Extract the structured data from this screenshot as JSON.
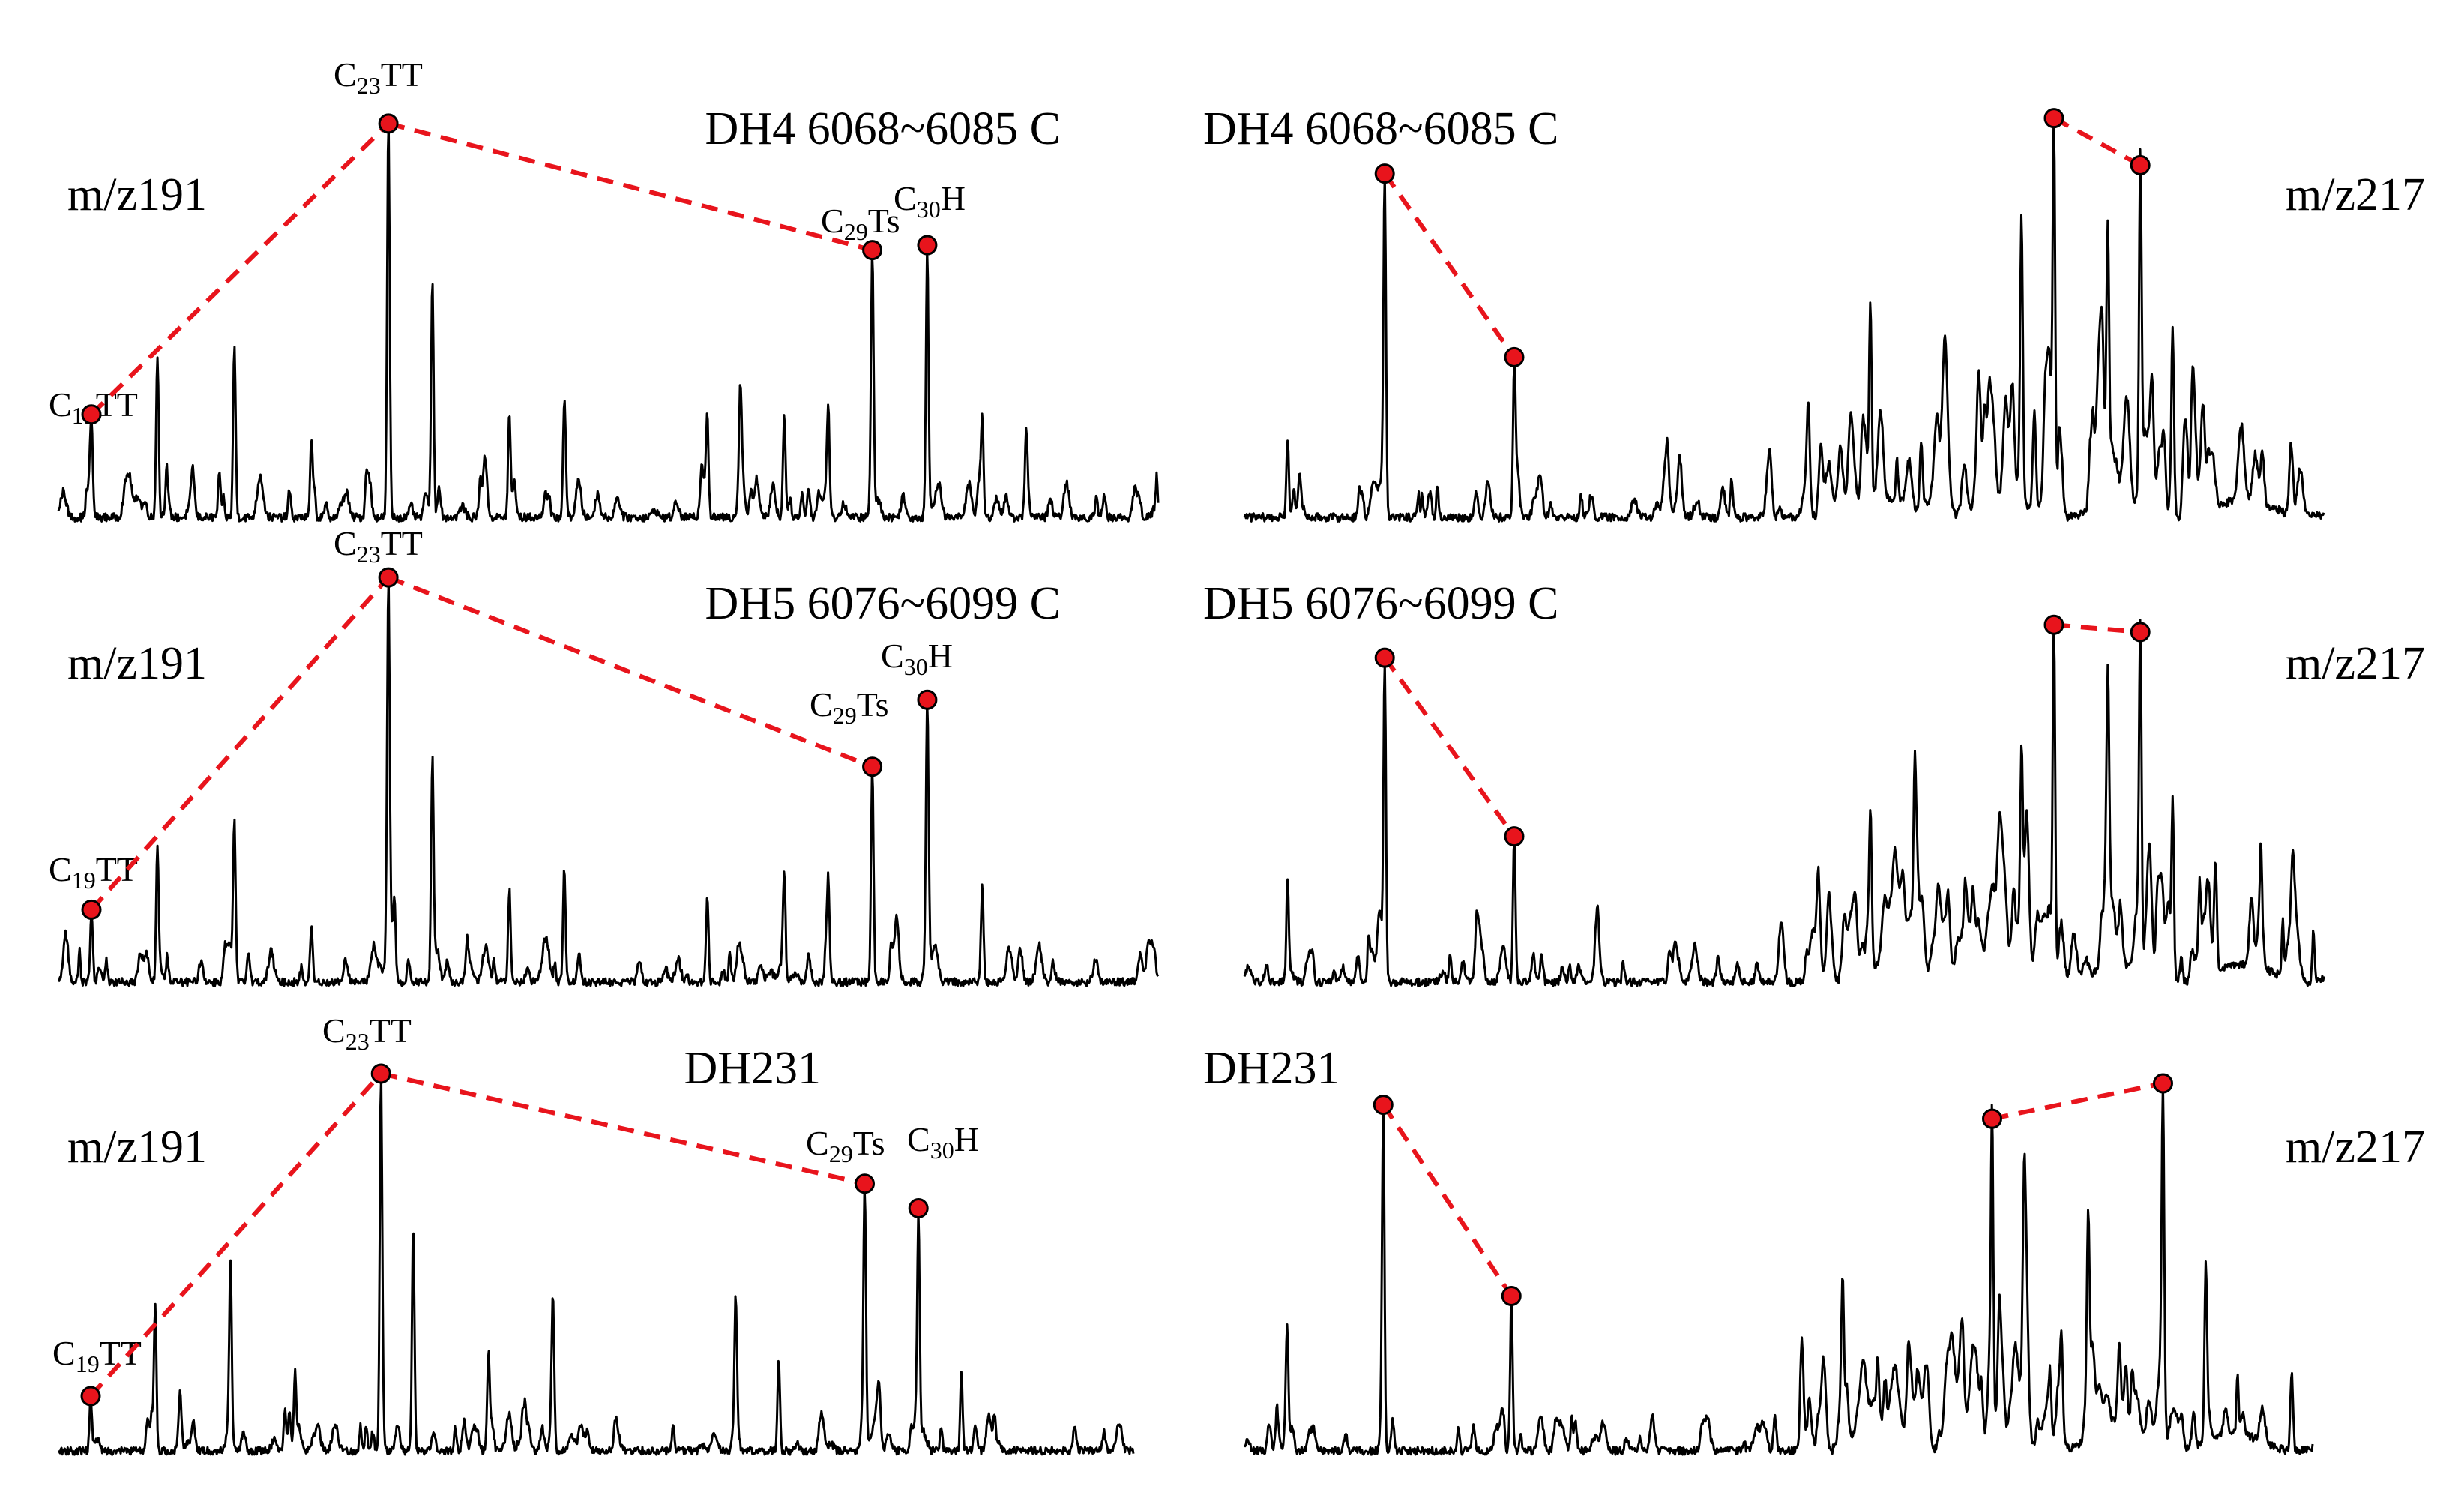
{
  "colors": {
    "trace": "#000000",
    "marker": "#e8141c",
    "marker_outline": "#000000",
    "link": "#e8141c",
    "background": "#ffffff"
  },
  "chart_data": [
    {
      "type": "line",
      "title": "DH4 6068~6085 C",
      "ion": "m/z191",
      "peaks": [
        {
          "rt": 0.03,
          "h": 0.17,
          "label": "C19TT",
          "marked": true
        },
        {
          "rt": 0.09,
          "h": 0.36
        },
        {
          "rt": 0.16,
          "h": 0.38
        },
        {
          "rt": 0.21,
          "h": 0.06
        },
        {
          "rt": 0.23,
          "h": 0.17
        },
        {
          "rt": 0.28,
          "h": 0.09
        },
        {
          "rt": 0.3,
          "h": 0.88,
          "label": "C23TT",
          "marked": true
        },
        {
          "rt": 0.34,
          "h": 0.52
        },
        {
          "rt": 0.41,
          "h": 0.23
        },
        {
          "rt": 0.46,
          "h": 0.26
        },
        {
          "rt": 0.59,
          "h": 0.21
        },
        {
          "rt": 0.62,
          "h": 0.21
        },
        {
          "rt": 0.66,
          "h": 0.23
        },
        {
          "rt": 0.7,
          "h": 0.22
        },
        {
          "rt": 0.74,
          "h": 0.55,
          "label": "C29Ts",
          "marked": true
        },
        {
          "rt": 0.79,
          "h": 0.6,
          "label": "C30H",
          "marked": true
        },
        {
          "rt": 0.84,
          "h": 0.22
        },
        {
          "rt": 0.88,
          "h": 0.16
        }
      ]
    },
    {
      "type": "line",
      "title": "DH4 6068~6085 C",
      "ion": "m/z217",
      "peaks": [
        {
          "rt": 0.04,
          "h": 0.17
        },
        {
          "rt": 0.13,
          "h": 0.72,
          "marked": true
        },
        {
          "rt": 0.25,
          "h": 0.32,
          "marked": true
        },
        {
          "rt": 0.58,
          "h": 0.38
        },
        {
          "rt": 0.72,
          "h": 0.5
        },
        {
          "rt": 0.75,
          "h": 0.83,
          "marked": true
        },
        {
          "rt": 0.8,
          "h": 0.42
        },
        {
          "rt": 0.83,
          "h": 0.74,
          "marked": true
        },
        {
          "rt": 0.86,
          "h": 0.38
        }
      ]
    },
    {
      "type": "line",
      "title": "DH5 6076~6099 C",
      "ion": "m/z191",
      "peaks": [
        {
          "rt": 0.03,
          "h": 0.14,
          "label": "C19TT",
          "marked": true
        },
        {
          "rt": 0.09,
          "h": 0.3
        },
        {
          "rt": 0.16,
          "h": 0.35
        },
        {
          "rt": 0.23,
          "h": 0.13
        },
        {
          "rt": 0.3,
          "h": 0.84,
          "label": "C23TT",
          "marked": true
        },
        {
          "rt": 0.34,
          "h": 0.5
        },
        {
          "rt": 0.41,
          "h": 0.21
        },
        {
          "rt": 0.46,
          "h": 0.26
        },
        {
          "rt": 0.59,
          "h": 0.19
        },
        {
          "rt": 0.66,
          "h": 0.21
        },
        {
          "rt": 0.7,
          "h": 0.24
        },
        {
          "rt": 0.74,
          "h": 0.49,
          "label": "C29Ts",
          "marked": true
        },
        {
          "rt": 0.79,
          "h": 0.55,
          "label": "C30H",
          "marked": true
        },
        {
          "rt": 0.84,
          "h": 0.22
        }
      ]
    },
    {
      "type": "line",
      "title": "DH5 6076~6099 C",
      "ion": "m/z217",
      "peaks": [
        {
          "rt": 0.04,
          "h": 0.23
        },
        {
          "rt": 0.13,
          "h": 0.72,
          "marked": true
        },
        {
          "rt": 0.25,
          "h": 0.33,
          "marked": true
        },
        {
          "rt": 0.58,
          "h": 0.33
        },
        {
          "rt": 0.72,
          "h": 0.4
        },
        {
          "rt": 0.75,
          "h": 0.8,
          "marked": true
        },
        {
          "rt": 0.8,
          "h": 0.42
        },
        {
          "rt": 0.83,
          "h": 0.72,
          "marked": true
        },
        {
          "rt": 0.86,
          "h": 0.4
        }
      ]
    },
    {
      "type": "line",
      "title": "DH231",
      "ion": "m/z191",
      "peaks": [
        {
          "rt": 0.03,
          "h": 0.12,
          "label": "C19TT",
          "marked": true
        },
        {
          "rt": 0.09,
          "h": 0.34
        },
        {
          "rt": 0.16,
          "h": 0.4
        },
        {
          "rt": 0.22,
          "h": 0.17
        },
        {
          "rt": 0.3,
          "h": 0.85,
          "label": "C23TT",
          "marked": true
        },
        {
          "rt": 0.33,
          "h": 0.52
        },
        {
          "rt": 0.4,
          "h": 0.23
        },
        {
          "rt": 0.46,
          "h": 0.29
        },
        {
          "rt": 0.63,
          "h": 0.3
        },
        {
          "rt": 0.67,
          "h": 0.21
        },
        {
          "rt": 0.75,
          "h": 0.55,
          "label": "C29Ts",
          "marked": true
        },
        {
          "rt": 0.8,
          "h": 0.55,
          "label": "C30H",
          "marked": true
        },
        {
          "rt": 0.84,
          "h": 0.18
        }
      ]
    },
    {
      "type": "line",
      "title": "DH231",
      "ion": "m/z217",
      "peaks": [
        {
          "rt": 0.04,
          "h": 0.27
        },
        {
          "rt": 0.13,
          "h": 0.8,
          "marked": true
        },
        {
          "rt": 0.25,
          "h": 0.36,
          "marked": true
        },
        {
          "rt": 0.56,
          "h": 0.33
        },
        {
          "rt": 0.7,
          "h": 0.75,
          "marked": true
        },
        {
          "rt": 0.73,
          "h": 0.38
        },
        {
          "rt": 0.79,
          "h": 0.4
        },
        {
          "rt": 0.86,
          "h": 0.7,
          "marked": true
        },
        {
          "rt": 0.9,
          "h": 0.38
        }
      ]
    }
  ]
}
